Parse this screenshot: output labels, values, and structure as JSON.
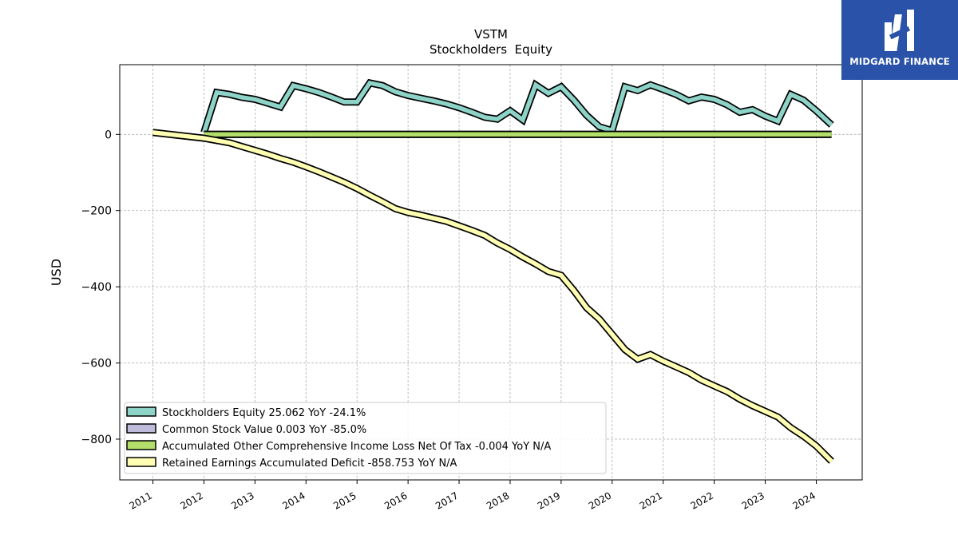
{
  "brand": {
    "name": "MIDGARD FINANCE"
  },
  "chart_data": {
    "type": "line",
    "title": "VSTM",
    "subtitle": "Stockholders  Equity",
    "ylabel": "USD",
    "xlabel": "",
    "x_tick_labels": [
      "2011",
      "2012",
      "2013",
      "2014",
      "2015",
      "2016",
      "2017",
      "2018",
      "2019",
      "2020",
      "2021",
      "2022",
      "2023",
      "2024"
    ],
    "y_ticks": [
      0,
      -200,
      -400,
      -600,
      -800
    ],
    "y_tick_labels": [
      "0",
      "−200",
      "−400",
      "−600",
      "−800"
    ],
    "xlim": [
      2010.35,
      2024.9
    ],
    "ylim": [
      -907,
      183
    ],
    "grid": true,
    "legend_position": "lower-left",
    "series": [
      {
        "name": "Stockholders Equity",
        "legend": "Stockholders Equity  25.062 YoY -24.1%",
        "color": "#8dd3c7",
        "x": [
          2012.0,
          2012.25,
          2012.5,
          2012.75,
          2013.0,
          2013.25,
          2013.5,
          2013.75,
          2014.0,
          2014.25,
          2014.5,
          2014.75,
          2015.0,
          2015.25,
          2015.5,
          2015.75,
          2016.0,
          2016.25,
          2016.5,
          2016.75,
          2017.0,
          2017.25,
          2017.5,
          2017.75,
          2018.0,
          2018.25,
          2018.5,
          2018.75,
          2019.0,
          2019.25,
          2019.5,
          2019.75,
          2020.0,
          2020.25,
          2020.5,
          2020.75,
          2021.0,
          2021.25,
          2021.5,
          2021.75,
          2022.0,
          2022.25,
          2022.5,
          2022.75,
          2023.0,
          2023.25,
          2023.5,
          2023.75,
          2024.0,
          2024.3
        ],
        "y": [
          5,
          110,
          105,
          97,
          92,
          82,
          72,
          128,
          120,
          110,
          98,
          85,
          85,
          135,
          128,
          112,
          102,
          95,
          88,
          80,
          70,
          58,
          45,
          40,
          62,
          38,
          130,
          108,
          125,
          90,
          50,
          20,
          10,
          125,
          115,
          130,
          118,
          105,
          88,
          98,
          92,
          78,
          58,
          65,
          48,
          35,
          105,
          90,
          62,
          25
        ]
      },
      {
        "name": "Common Stock Value",
        "legend": "Common Stock Value  0.003 YoY -85.0%",
        "color": "#bebada",
        "x": [
          2012.0,
          2024.3
        ],
        "y": [
          0.02,
          0.003
        ]
      },
      {
        "name": "Accumulated Other Comprehensive Income Loss Net Of Tax",
        "legend": "Accumulated Other Comprehensive Income Loss Net Of Tax  -0.004 YoY N/A",
        "color": "#b3de69",
        "x": [
          2012.0,
          2024.3
        ],
        "y": [
          0,
          0
        ]
      },
      {
        "name": "Retained Earnings Accumulated Deficit",
        "legend": "Retained Earnings Accumulated Deficit  -858.753 YoY N/A",
        "color": "#ffffb3",
        "x": [
          2011.0,
          2012.0,
          2012.5,
          2012.75,
          2013.0,
          2013.25,
          2013.5,
          2013.75,
          2014.0,
          2014.25,
          2014.5,
          2014.75,
          2015.0,
          2015.25,
          2015.5,
          2015.75,
          2016.0,
          2016.25,
          2016.5,
          2016.75,
          2017.0,
          2017.25,
          2017.5,
          2017.75,
          2018.0,
          2018.25,
          2018.5,
          2018.75,
          2019.0,
          2019.25,
          2019.5,
          2019.75,
          2020.0,
          2020.25,
          2020.5,
          2020.75,
          2021.0,
          2021.25,
          2021.5,
          2021.75,
          2022.0,
          2022.25,
          2022.5,
          2022.75,
          2023.0,
          2023.25,
          2023.5,
          2023.75,
          2024.0,
          2024.3
        ],
        "y": [
          5,
          -10,
          -22,
          -32,
          -42,
          -52,
          -63,
          -73,
          -85,
          -98,
          -112,
          -126,
          -142,
          -160,
          -177,
          -195,
          -205,
          -212,
          -220,
          -228,
          -240,
          -252,
          -265,
          -285,
          -302,
          -322,
          -340,
          -360,
          -370,
          -410,
          -455,
          -485,
          -525,
          -565,
          -590,
          -578,
          -595,
          -610,
          -625,
          -645,
          -660,
          -675,
          -695,
          -712,
          -727,
          -742,
          -770,
          -792,
          -818,
          -858
        ]
      }
    ]
  }
}
